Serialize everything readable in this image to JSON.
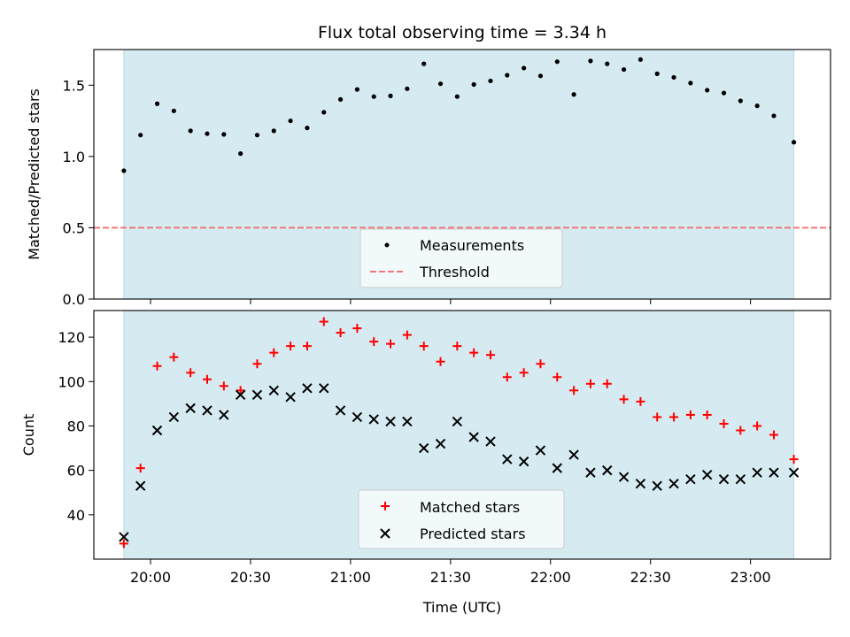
{
  "chart_data": [
    {
      "type": "scatter",
      "title": "Flux total observing time = 3.34 h",
      "xlabel": "",
      "ylabel": "Matched/Predicted stars",
      "ylim": [
        0,
        1.75
      ],
      "yticks": [
        "0.0",
        "0.5",
        "1.0",
        "1.5"
      ],
      "xlim": [
        "19:43",
        "23:24"
      ],
      "shaded_range": [
        "19:52",
        "23:13"
      ],
      "shade_color": "#d5ebf1",
      "threshold": 0.5,
      "legend_placement": "lower-center",
      "series": [
        {
          "name": "Measurements",
          "color": "#000000",
          "marker": "dot",
          "points": [
            [
              "19:52",
              0.9
            ],
            [
              "19:57",
              1.15
            ],
            [
              "20:02",
              1.37
            ],
            [
              "20:07",
              1.32
            ],
            [
              "20:12",
              1.18
            ],
            [
              "20:17",
              1.16
            ],
            [
              "20:22",
              1.155
            ],
            [
              "20:27",
              1.02
            ],
            [
              "20:32",
              1.15
            ],
            [
              "20:37",
              1.18
            ],
            [
              "20:42",
              1.25
            ],
            [
              "20:47",
              1.2
            ],
            [
              "20:52",
              1.31
            ],
            [
              "20:57",
              1.4
            ],
            [
              "21:02",
              1.47
            ],
            [
              "21:07",
              1.42
            ],
            [
              "21:12",
              1.425
            ],
            [
              "21:17",
              1.475
            ],
            [
              "21:22",
              1.65
            ],
            [
              "21:27",
              1.51
            ],
            [
              "21:32",
              1.42
            ],
            [
              "21:37",
              1.505
            ],
            [
              "21:42",
              1.53
            ],
            [
              "21:47",
              1.57
            ],
            [
              "21:52",
              1.62
            ],
            [
              "21:57",
              1.565
            ],
            [
              "22:02",
              1.665
            ],
            [
              "22:07",
              1.435
            ],
            [
              "22:12",
              1.67
            ],
            [
              "22:17",
              1.65
            ],
            [
              "22:22",
              1.61
            ],
            [
              "22:27",
              1.68
            ],
            [
              "22:32",
              1.58
            ],
            [
              "22:37",
              1.555
            ],
            [
              "22:42",
              1.515
            ],
            [
              "22:47",
              1.465
            ],
            [
              "22:52",
              1.445
            ],
            [
              "22:57",
              1.39
            ],
            [
              "23:02",
              1.355
            ],
            [
              "23:07",
              1.285
            ],
            [
              "23:13",
              1.1
            ]
          ]
        },
        {
          "name": "Threshold",
          "color": "#f07878",
          "style": "dashed",
          "value": 0.5
        }
      ]
    },
    {
      "type": "scatter",
      "title": "",
      "xlabel": "Time (UTC)",
      "ylabel": "Count",
      "ylim": [
        20,
        132
      ],
      "yticks": [
        "40",
        "60",
        "80",
        "100",
        "120"
      ],
      "xlim": [
        "19:43",
        "23:24"
      ],
      "xticks": [
        "20:00",
        "20:30",
        "21:00",
        "21:30",
        "22:00",
        "22:30",
        "23:00"
      ],
      "shaded_range": [
        "19:52",
        "23:13"
      ],
      "shade_color": "#d5ebf1",
      "legend_placement": "lower-center",
      "series": [
        {
          "name": "Matched stars",
          "color": "#ff0000",
          "marker": "plus",
          "points": [
            [
              "19:52",
              27
            ],
            [
              "19:57",
              61
            ],
            [
              "20:02",
              107
            ],
            [
              "20:07",
              111
            ],
            [
              "20:12",
              104
            ],
            [
              "20:17",
              101
            ],
            [
              "20:22",
              98
            ],
            [
              "20:27",
              96
            ],
            [
              "20:32",
              108
            ],
            [
              "20:37",
              113
            ],
            [
              "20:42",
              116
            ],
            [
              "20:47",
              116
            ],
            [
              "20:52",
              127
            ],
            [
              "20:57",
              122
            ],
            [
              "21:02",
              124
            ],
            [
              "21:07",
              118
            ],
            [
              "21:12",
              117
            ],
            [
              "21:17",
              121
            ],
            [
              "21:22",
              116
            ],
            [
              "21:27",
              109
            ],
            [
              "21:32",
              116
            ],
            [
              "21:37",
              113
            ],
            [
              "21:42",
              112
            ],
            [
              "21:47",
              102
            ],
            [
              "21:52",
              104
            ],
            [
              "21:57",
              108
            ],
            [
              "22:02",
              102
            ],
            [
              "22:07",
              96
            ],
            [
              "22:12",
              99
            ],
            [
              "22:17",
              99
            ],
            [
              "22:22",
              92
            ],
            [
              "22:27",
              91
            ],
            [
              "22:32",
              84
            ],
            [
              "22:37",
              84
            ],
            [
              "22:42",
              85
            ],
            [
              "22:47",
              85
            ],
            [
              "22:52",
              81
            ],
            [
              "22:57",
              78
            ],
            [
              "23:02",
              80
            ],
            [
              "23:07",
              76
            ],
            [
              "23:13",
              65
            ]
          ]
        },
        {
          "name": "Predicted stars",
          "color": "#000000",
          "marker": "x",
          "points": [
            [
              "19:52",
              30
            ],
            [
              "19:57",
              53
            ],
            [
              "20:02",
              78
            ],
            [
              "20:07",
              84
            ],
            [
              "20:12",
              88
            ],
            [
              "20:17",
              87
            ],
            [
              "20:22",
              85
            ],
            [
              "20:27",
              94
            ],
            [
              "20:32",
              94
            ],
            [
              "20:37",
              96
            ],
            [
              "20:42",
              93
            ],
            [
              "20:47",
              97
            ],
            [
              "20:52",
              97
            ],
            [
              "20:57",
              87
            ],
            [
              "21:02",
              84
            ],
            [
              "21:07",
              83
            ],
            [
              "21:12",
              82
            ],
            [
              "21:17",
              82
            ],
            [
              "21:22",
              70
            ],
            [
              "21:27",
              72
            ],
            [
              "21:32",
              82
            ],
            [
              "21:37",
              75
            ],
            [
              "21:42",
              73
            ],
            [
              "21:47",
              65
            ],
            [
              "21:52",
              64
            ],
            [
              "21:57",
              69
            ],
            [
              "22:02",
              61
            ],
            [
              "22:07",
              67
            ],
            [
              "22:12",
              59
            ],
            [
              "22:17",
              60
            ],
            [
              "22:22",
              57
            ],
            [
              "22:27",
              54
            ],
            [
              "22:32",
              53
            ],
            [
              "22:37",
              54
            ],
            [
              "22:42",
              56
            ],
            [
              "22:47",
              58
            ],
            [
              "22:52",
              56
            ],
            [
              "22:57",
              56
            ],
            [
              "23:02",
              59
            ],
            [
              "23:07",
              59
            ],
            [
              "23:13",
              59
            ]
          ]
        }
      ]
    }
  ]
}
